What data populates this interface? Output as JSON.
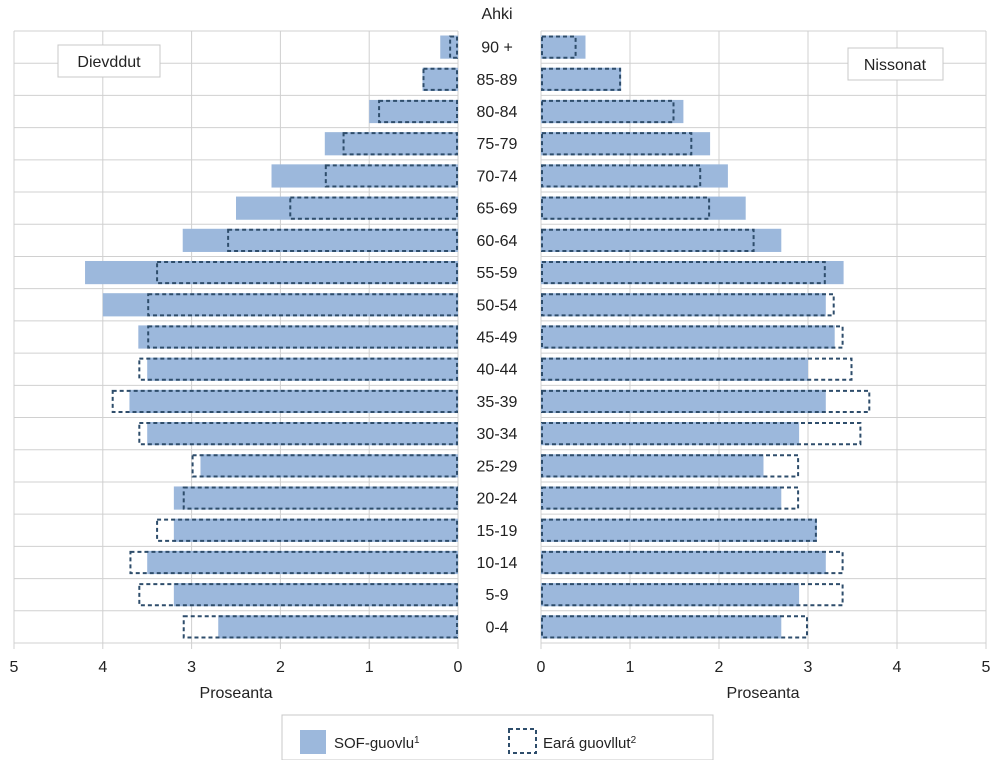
{
  "chart_data": {
    "type": "bar",
    "subtype": "population-pyramid",
    "center_header": "Ahki",
    "categories": [
      "90 +",
      "85-89",
      "80-84",
      "75-79",
      "70-74",
      "65-69",
      "60-64",
      "55-59",
      "50-54",
      "45-49",
      "40-44",
      "35-39",
      "30-34",
      "25-29",
      "20-24",
      "15-19",
      "10-14",
      "5-9",
      "0-4"
    ],
    "panels": {
      "left": {
        "label": "Dievddut",
        "xlabel": "Proseanta",
        "xlim": [
          0,
          5
        ],
        "ticks": [
          "5",
          "4",
          "3",
          "2",
          "1",
          "0"
        ],
        "series": [
          {
            "name": "SOF-guovlu",
            "name_sup": "1",
            "values": [
              0.2,
              0.4,
              1.0,
              1.5,
              2.1,
              2.5,
              3.1,
              4.2,
              4.0,
              3.6,
              3.5,
              3.7,
              3.5,
              2.9,
              3.2,
              3.2,
              3.5,
              3.2,
              2.7
            ]
          },
          {
            "name": "Eará guovllut",
            "name_sup": "2",
            "values": [
              0.1,
              0.4,
              0.9,
              1.3,
              1.5,
              1.9,
              2.6,
              3.4,
              3.5,
              3.5,
              3.6,
              3.9,
              3.6,
              3.0,
              3.1,
              3.4,
              3.7,
              3.6,
              3.1
            ]
          }
        ]
      },
      "right": {
        "label": "Nissonat",
        "xlabel": "Proseanta",
        "xlim": [
          0,
          5
        ],
        "ticks": [
          "0",
          "1",
          "2",
          "3",
          "4",
          "5"
        ],
        "series": [
          {
            "name": "SOF-guovlu",
            "name_sup": "1",
            "values": [
              0.5,
              0.9,
              1.6,
              1.9,
              2.1,
              2.3,
              2.7,
              3.4,
              3.2,
              3.3,
              3.0,
              3.2,
              2.9,
              2.5,
              2.7,
              3.1,
              3.2,
              2.9,
              2.7
            ]
          },
          {
            "name": "Eará guovllut",
            "name_sup": "2",
            "values": [
              0.4,
              0.9,
              1.5,
              1.7,
              1.8,
              1.9,
              2.4,
              3.2,
              3.3,
              3.4,
              3.5,
              3.7,
              3.6,
              2.9,
              2.9,
              3.1,
              3.4,
              3.4,
              3.0
            ]
          }
        ]
      }
    },
    "legend": {
      "position": "bottom-center",
      "items": [
        {
          "name": "SOF-guovlu",
          "sup": "1",
          "style": "filled"
        },
        {
          "name": "Eará guovllut",
          "sup": "2",
          "style": "dashed-outline"
        }
      ]
    },
    "grid": true,
    "colors": {
      "fill": "#9cb8dc",
      "outline": "#2e4d6b",
      "grid": "#d0d0d0"
    }
  }
}
